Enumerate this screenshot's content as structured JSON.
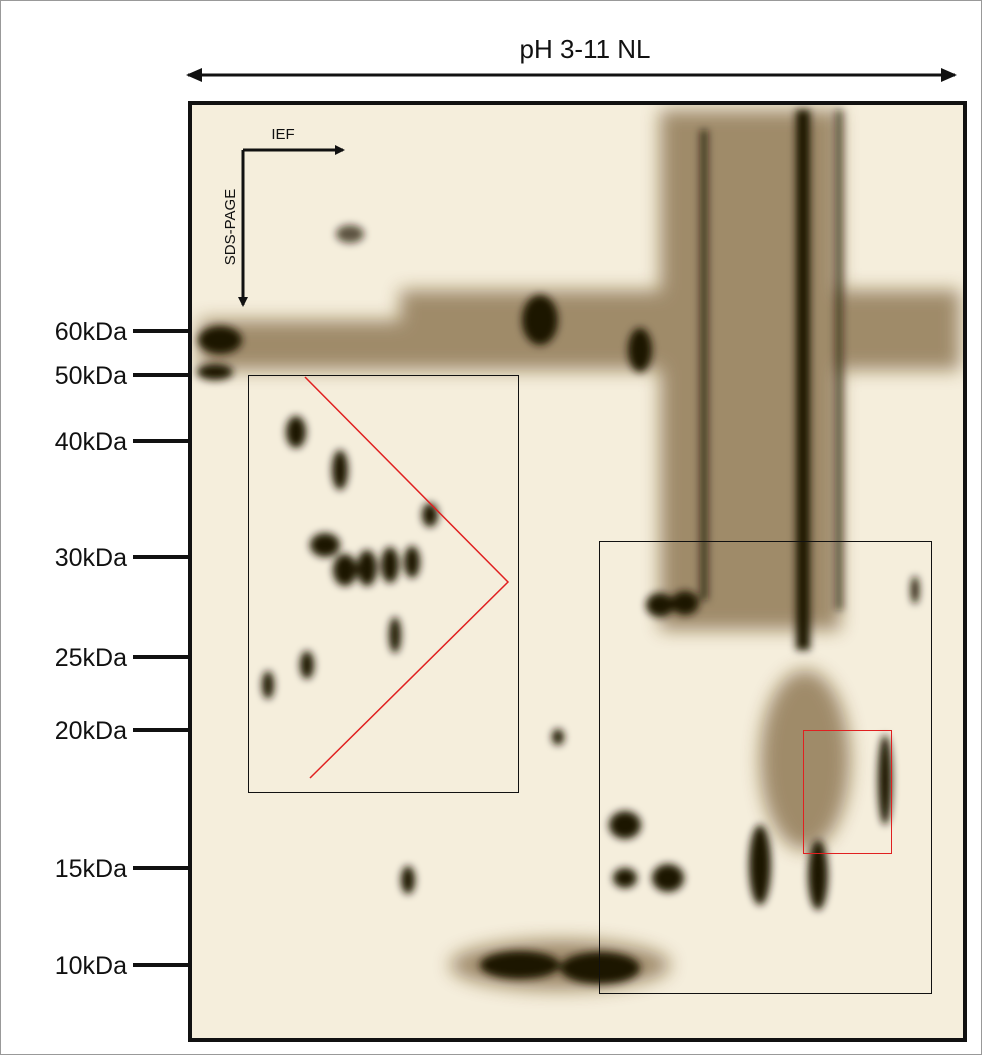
{
  "header": {
    "title": "pH 3-11 NL"
  },
  "gel": {
    "horizontal_axis": "IEF",
    "vertical_axis": "SDS-PAGE"
  },
  "markers": [
    "60kDa",
    "50kDa",
    "40kDa",
    "30kDa",
    "25kDa",
    "20kDa",
    "15kDa",
    "10kDa"
  ]
}
